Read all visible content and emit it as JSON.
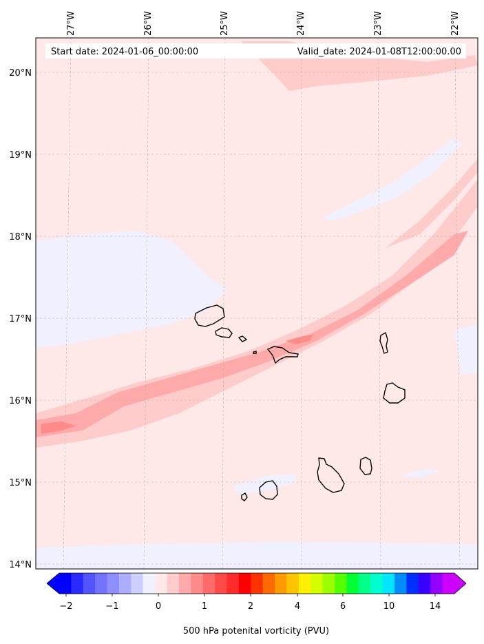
{
  "header": {
    "start_date": "Start date: 2024-01-06_00:00:00",
    "valid_date": "Valid_date: 2024-01-08T12:00:00.00"
  },
  "axes": {
    "lon_labels": [
      "27°W",
      "26°W",
      "25°W",
      "24°W",
      "23°W",
      "22°W"
    ],
    "lat_labels": [
      "20°N",
      "19°N",
      "18°N",
      "17°N",
      "16°N",
      "15°N",
      "14°N"
    ]
  },
  "colorbar": {
    "label": "500 hPa potenital vorticity (PVU)",
    "tick_labels": [
      "−2",
      "−1",
      "0",
      "1",
      "2",
      "4",
      "6",
      "10",
      "14"
    ],
    "colors": [
      "#0000ff",
      "#2a2aff",
      "#5454ff",
      "#7373ff",
      "#8e8eff",
      "#adadff",
      "#cfcfff",
      "#f0f0ff",
      "#ffe8e8",
      "#ffcccc",
      "#ffaaaa",
      "#ff8a8a",
      "#ff6b6b",
      "#ff4a4a",
      "#ff2a2a",
      "#ff0000",
      "#ff3300",
      "#ff6a00",
      "#ff9900",
      "#ffc400",
      "#fff000",
      "#d4ff00",
      "#9cff00",
      "#55ff00",
      "#00ff33",
      "#00ff88",
      "#00ffd0",
      "#00e6ff",
      "#008cff",
      "#0030ff",
      "#3a00ff",
      "#9400ff",
      "#cc00ff"
    ]
  },
  "field_colors": {
    "background": "#ffe8e8",
    "negative": "#f0f0ff",
    "low": "#ffcccc",
    "mid": "#ffaaaa",
    "high": "#ff8a8a"
  }
}
